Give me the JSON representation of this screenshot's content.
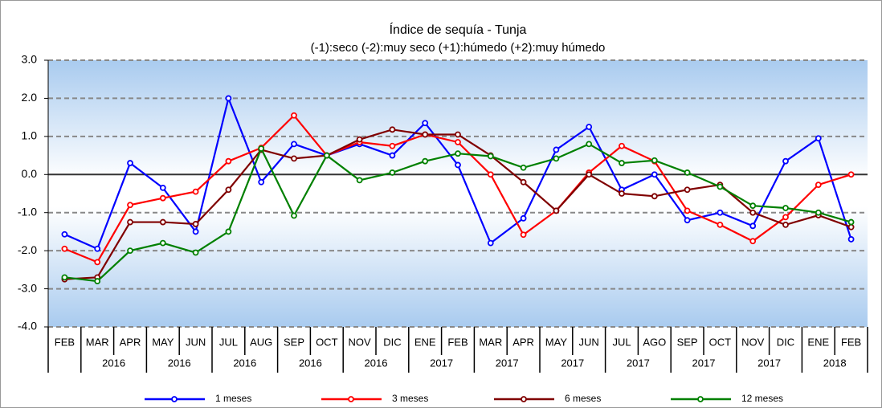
{
  "chart_data": {
    "type": "line",
    "title": "Índice de sequía - Tunja",
    "subtitle": "(-1):seco   (-2):muy  seco  (+1):húmedo    (+2):muy  húmedo",
    "categories": [
      "FEB",
      "MAR",
      "APR",
      "MAY",
      "JUN",
      "JUL",
      "AUG",
      "SEP",
      "OCT",
      "NOV",
      "DIC",
      "ENE",
      "FEB",
      "MAR",
      "APR",
      "MAY",
      "JUN",
      "JUL",
      "AGO",
      "SEP",
      "OCT",
      "NOV",
      "DIC",
      "ENE",
      "FEB"
    ],
    "year_groups": [
      {
        "label": "2016",
        "start": 1,
        "end": 2
      },
      {
        "label": "2016",
        "start": 3,
        "end": 4
      },
      {
        "label": "2016",
        "start": 5,
        "end": 6
      },
      {
        "label": "2016",
        "start": 7,
        "end": 8
      },
      {
        "label": "2016",
        "start": 9,
        "end": 10
      },
      {
        "label": "2017",
        "start": 11,
        "end": 12
      },
      {
        "label": "2017",
        "start": 13,
        "end": 14
      },
      {
        "label": "2017",
        "start": 15,
        "end": 16
      },
      {
        "label": "2017",
        "start": 17,
        "end": 18
      },
      {
        "label": "2017",
        "start": 19,
        "end": 20
      },
      {
        "label": "2017",
        "start": 21,
        "end": 22
      },
      {
        "label": "2018",
        "start": 23,
        "end": 24
      }
    ],
    "series": [
      {
        "name": "1 meses",
        "color": "#0000ff",
        "values": [
          -1.57,
          -1.95,
          0.3,
          -0.35,
          -1.5,
          2.0,
          -0.2,
          0.8,
          0.5,
          0.8,
          0.5,
          1.35,
          0.25,
          -1.8,
          -1.15,
          0.65,
          1.25,
          -0.4,
          0.0,
          -1.2,
          -1.0,
          -1.35,
          0.35,
          0.95,
          -1.7
        ]
      },
      {
        "name": "3 meses",
        "color": "#ff0000",
        "values": [
          -1.95,
          -2.3,
          -0.8,
          -0.62,
          -0.45,
          0.35,
          0.7,
          1.55,
          0.5,
          0.85,
          0.75,
          1.05,
          0.85,
          0.0,
          -1.58,
          -0.95,
          0.05,
          0.75,
          0.35,
          -0.95,
          -1.32,
          -1.75,
          -1.12,
          -0.27,
          0.0
        ]
      },
      {
        "name": "6 meses",
        "color": "#800000",
        "values": [
          -2.75,
          -2.7,
          -1.25,
          -1.25,
          -1.3,
          -0.4,
          0.65,
          0.42,
          0.5,
          0.92,
          1.18,
          1.05,
          1.05,
          0.5,
          -0.2,
          -0.95,
          0.0,
          -0.5,
          -0.57,
          -0.4,
          -0.27,
          -1.0,
          -1.32,
          -1.07,
          -1.38
        ]
      },
      {
        "name": "12 meses",
        "color": "#008000",
        "values": [
          -2.7,
          -2.8,
          -2.0,
          -1.8,
          -2.05,
          -1.5,
          0.68,
          -1.08,
          0.5,
          -0.15,
          0.05,
          0.35,
          0.55,
          0.48,
          0.18,
          0.42,
          0.8,
          0.3,
          0.37,
          0.05,
          -0.32,
          -0.82,
          -0.88,
          -1.0,
          -1.25
        ]
      }
    ],
    "ylim": [
      -4,
      3
    ],
    "yticks": [
      {
        "value": -4,
        "label": "-4.0"
      },
      {
        "value": -3,
        "label": "-3.0"
      },
      {
        "value": -2,
        "label": "-2.0"
      },
      {
        "value": -1,
        "label": "-1.0"
      },
      {
        "value": 0,
        "label": "0.0"
      },
      {
        "value": 1,
        "label": "1.0"
      },
      {
        "value": 2,
        "label": "2.0"
      },
      {
        "value": 3,
        "label": "3.0"
      }
    ],
    "grid": true,
    "legend": "bottom"
  }
}
